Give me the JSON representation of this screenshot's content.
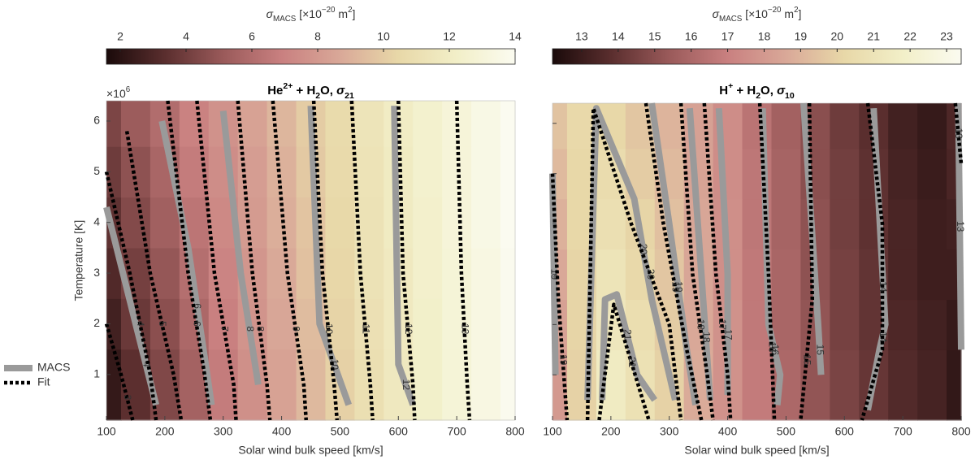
{
  "chart_data": [
    {
      "type": "contour",
      "title": [
        {
          "text": "He"
        },
        {
          "text": "2+",
          "pos": "sup"
        },
        {
          "text": " + H"
        },
        {
          "text": "2",
          "pos": "sub"
        },
        {
          "text": "O, "
        },
        {
          "text": "σ",
          "italic": true
        },
        {
          "text": "21",
          "pos": "sub"
        }
      ],
      "colorbar_label": [
        {
          "text": "σ",
          "italic": true
        },
        {
          "text": "MACS",
          "pos": "sub"
        },
        {
          "text": " [×10"
        },
        {
          "text": "−20",
          "pos": "sup"
        },
        {
          "text": " m"
        },
        {
          "text": "2",
          "pos": "sup"
        },
        {
          "text": "]"
        }
      ],
      "clim": [
        1.58,
        14
      ],
      "cticks": [
        2,
        4,
        6,
        8,
        10,
        12,
        14
      ],
      "colormap": [
        "#1a0a0a",
        "#5a2e2e",
        "#9a5a5a",
        "#c98080",
        "#d9a898",
        "#e8d8a8",
        "#f2efc8",
        "#fbfbf0"
      ],
      "x_label": "Solar wind bulk speed [km/s]",
      "y_label": "Temperature [K]",
      "y_exponent": [
        {
          "text": "×10"
        },
        {
          "text": "6",
          "pos": "sup"
        }
      ],
      "xlim": [
        100,
        800
      ],
      "xticks": [
        100,
        200,
        300,
        400,
        500,
        600,
        700,
        800
      ],
      "ylim": [
        100000,
        6400000
      ],
      "yticks": [
        {
          "value": 1000000,
          "label": "1"
        },
        {
          "value": 2000000,
          "label": "2"
        },
        {
          "value": 3000000,
          "label": "3"
        },
        {
          "value": 4000000,
          "label": "4"
        },
        {
          "value": 5000000,
          "label": "5"
        },
        {
          "value": 6000000,
          "label": "6"
        }
      ],
      "legend": [
        {
          "name": "MACS",
          "style": "solid"
        },
        {
          "name": "Fit",
          "style": "dotted"
        }
      ],
      "styles": {
        "solid": {
          "color": "#9a9a9a",
          "width": 8
        },
        "dotted": {
          "color": "#000000",
          "width": 4.5
        }
      },
      "field": {
        "x": [
          100,
          150,
          200,
          250,
          300,
          350,
          400,
          450,
          500,
          550,
          600,
          650,
          700,
          750,
          800
        ],
        "y": [
          1000000,
          2000000,
          3000000,
          4000000,
          5000000,
          6000000
        ],
        "z": [
          [
            2.3,
            3.4,
            4.4,
            5.5,
            6.7,
            7.6,
            8.4,
            9.3,
            10.2,
            11.0,
            11.7,
            12.3,
            12.9,
            13.4,
            13.9
          ],
          [
            2.7,
            3.8,
            4.7,
            5.8,
            6.9,
            7.8,
            8.6,
            9.4,
            10.3,
            11.1,
            11.8,
            12.3,
            12.9,
            13.4,
            13.9
          ],
          [
            3.1,
            4.1,
            5.0,
            6.1,
            7.1,
            7.9,
            8.7,
            9.6,
            10.4,
            11.2,
            11.8,
            12.4,
            12.9,
            13.4,
            13.9
          ],
          [
            3.5,
            4.5,
            5.4,
            6.4,
            7.3,
            8.1,
            8.9,
            9.7,
            10.5,
            11.2,
            11.9,
            12.4,
            13.0,
            13.5,
            14.0
          ],
          [
            3.9,
            4.8,
            5.7,
            6.7,
            7.5,
            8.2,
            9.0,
            9.9,
            10.6,
            11.3,
            11.9,
            12.5,
            13.0,
            13.5,
            14.0
          ],
          [
            4.3,
            5.2,
            6.0,
            7.0,
            7.7,
            8.4,
            9.2,
            10.0,
            10.7,
            11.4,
            12.0,
            12.5,
            13.0,
            13.5,
            14.0
          ]
        ]
      },
      "contours": [
        {
          "label": "4",
          "style": "solid",
          "x": [
            100,
            150,
            185
          ],
          "y": [
            4300000,
            2000000,
            400000
          ]
        },
        {
          "label": "6",
          "style": "solid",
          "x": [
            195,
            240,
            270,
            280
          ],
          "y": [
            6000000,
            3500000,
            1200000,
            400000
          ]
        },
        {
          "label": "8",
          "style": "solid",
          "x": [
            300,
            330,
            360
          ],
          "y": [
            6200000,
            3000000,
            800000
          ]
        },
        {
          "label": "10",
          "style": "solid",
          "x": [
            450,
            465,
            515
          ],
          "y": [
            6300000,
            2000000,
            400000
          ]
        },
        {
          "label": "12",
          "style": "solid",
          "x": [
            593,
            600,
            625
          ],
          "y": [
            6300000,
            1200000,
            400000
          ]
        },
        {
          "label": "3",
          "style": "dotted",
          "x": [
            100,
            125,
            145
          ],
          "y": [
            2000000,
            1000000,
            100000
          ]
        },
        {
          "label": "4",
          "style": "dotted",
          "x": [
            100,
            140,
            175,
            185
          ],
          "y": [
            5000000,
            3000000,
            1000000,
            100000
          ]
        },
        {
          "label": "5",
          "style": "dotted",
          "x": [
            135,
            175,
            215,
            228
          ],
          "y": [
            5800000,
            3000000,
            1000000,
            100000
          ]
        },
        {
          "label": "6",
          "style": "dotted",
          "x": [
            205,
            240,
            268,
            278
          ],
          "y": [
            6400000,
            3000000,
            1000000,
            100000
          ]
        },
        {
          "label": "7",
          "style": "dotted",
          "x": [
            255,
            285,
            318,
            322
          ],
          "y": [
            6400000,
            3000000,
            800000,
            100000
          ]
        },
        {
          "label": "8",
          "style": "dotted",
          "x": [
            325,
            350,
            375,
            380
          ],
          "y": [
            6400000,
            3000000,
            800000,
            100000
          ]
        },
        {
          "label": "9",
          "style": "dotted",
          "x": [
            385,
            410,
            438,
            442
          ],
          "y": [
            6400000,
            3000000,
            800000,
            100000
          ]
        },
        {
          "label": "10",
          "style": "dotted",
          "x": [
            455,
            470,
            490,
            495
          ],
          "y": [
            6400000,
            3000000,
            800000,
            100000
          ]
        },
        {
          "label": "11",
          "style": "dotted",
          "x": [
            520,
            535,
            552,
            556
          ],
          "y": [
            6400000,
            3000000,
            800000,
            100000
          ]
        },
        {
          "label": "12",
          "style": "dotted",
          "x": [
            600,
            608,
            625,
            628
          ],
          "y": [
            6400000,
            3000000,
            800000,
            100000
          ]
        },
        {
          "label": "13",
          "style": "dotted",
          "x": [
            700,
            708,
            718,
            722
          ],
          "y": [
            6400000,
            3000000,
            800000,
            100000
          ]
        }
      ]
    },
    {
      "type": "contour",
      "title": [
        {
          "text": "H"
        },
        {
          "text": "+",
          "pos": "sup"
        },
        {
          "text": " + H"
        },
        {
          "text": "2",
          "pos": "sub"
        },
        {
          "text": "O, "
        },
        {
          "text": "σ",
          "italic": true
        },
        {
          "text": "10",
          "pos": "sub"
        }
      ],
      "colorbar_label": [
        {
          "text": "σ",
          "italic": true
        },
        {
          "text": "MACS",
          "pos": "sub"
        },
        {
          "text": " [×10"
        },
        {
          "text": "−20",
          "pos": "sup"
        },
        {
          "text": " m"
        },
        {
          "text": "2",
          "pos": "sup"
        },
        {
          "text": "]"
        }
      ],
      "clim": [
        12.2,
        23.4
      ],
      "cticks": [
        13,
        14,
        15,
        16,
        17,
        18,
        19,
        20,
        21,
        22,
        23
      ],
      "colormap": [
        "#1a0a0a",
        "#5a2e2e",
        "#9a5a5a",
        "#c98080",
        "#d9a898",
        "#e8d8a8",
        "#f2efc8",
        "#fbfbf0"
      ],
      "x_label": "Solar wind bulk speed [km/s]",
      "xlim": [
        100,
        800
      ],
      "xticks": [
        100,
        200,
        300,
        400,
        500,
        600,
        700,
        800
      ],
      "ylim": [
        100000,
        6400000
      ],
      "yticks": [
        1000000,
        2000000,
        3000000,
        4000000,
        5000000,
        6000000
      ],
      "ytick_labels": false,
      "styles": {
        "solid": {
          "color": "#9a9a9a",
          "width": 8
        },
        "dotted": {
          "color": "#000000",
          "width": 4.5
        }
      },
      "field": {
        "x": [
          100,
          150,
          200,
          250,
          300,
          350,
          400,
          450,
          500,
          550,
          600,
          650,
          700,
          750,
          800
        ],
        "y": [
          1000000,
          2000000,
          3000000,
          4000000,
          5000000,
          6000000
        ],
        "z": [
          [
            18.0,
            20.0,
            21.5,
            20.8,
            20.0,
            18.7,
            17.7,
            16.8,
            16.0,
            15.2,
            14.6,
            14.1,
            13.6,
            13.3,
            12.8
          ],
          [
            18.3,
            20.1,
            21.2,
            20.6,
            19.8,
            18.6,
            17.7,
            16.7,
            15.9,
            15.2,
            14.5,
            14.0,
            13.5,
            13.2,
            12.9
          ],
          [
            18.6,
            20.1,
            21.0,
            20.3,
            19.6,
            18.5,
            17.6,
            16.7,
            15.9,
            15.1,
            14.5,
            14.0,
            13.4,
            13.1,
            13.1
          ],
          [
            18.9,
            20.2,
            20.7,
            20.1,
            19.4,
            18.5,
            17.6,
            16.6,
            15.8,
            15.1,
            14.4,
            13.9,
            13.4,
            13.1,
            13.2
          ],
          [
            19.2,
            20.2,
            20.5,
            19.8,
            19.2,
            18.4,
            17.5,
            16.6,
            15.8,
            15.0,
            14.4,
            13.9,
            13.3,
            13.0,
            13.4
          ],
          [
            19.5,
            20.3,
            20.2,
            19.6,
            19.0,
            18.3,
            17.5,
            16.5,
            15.7,
            15.0,
            14.3,
            13.8,
            13.2,
            12.9,
            13.5
          ]
        ]
      },
      "contours": [
        {
          "label": "19",
          "style": "solid",
          "x": [
            100,
            105
          ],
          "y": [
            5000000,
            1000000
          ]
        },
        {
          "label": "20",
          "style": "solid",
          "x": [
            160,
            175,
            240,
            270,
            310
          ],
          "y": [
            500000,
            6300000,
            4500000,
            2500000,
            500000
          ]
        },
        {
          "label": "21",
          "style": "solid",
          "x": [
            185,
            190,
            210,
            245,
            275
          ],
          "y": [
            500000,
            2500000,
            2600000,
            1000000,
            500000
          ]
        },
        {
          "label": "19",
          "style": "solid",
          "x": [
            270,
            300,
            330,
            345
          ],
          "y": [
            6400000,
            4000000,
            1500000,
            400000
          ]
        },
        {
          "label": "18",
          "style": "solid",
          "x": [
            335,
            355,
            370
          ],
          "y": [
            6300000,
            3000000,
            500000
          ]
        },
        {
          "label": "17",
          "style": "solid",
          "x": [
            385,
            400,
            400
          ],
          "y": [
            6300000,
            3000000,
            600000
          ]
        },
        {
          "label": "16",
          "style": "solid",
          "x": [
            460,
            470,
            490,
            485
          ],
          "y": [
            6300000,
            2000000,
            1000000,
            400000
          ]
        },
        {
          "label": "15",
          "style": "solid",
          "x": [
            530,
            555,
            560
          ],
          "y": [
            6400000,
            2000000,
            1000000
          ]
        },
        {
          "label": "14",
          "style": "solid",
          "x": [
            650,
            670,
            660,
            640
          ],
          "y": [
            6300000,
            2000000,
            1500000,
            300000
          ]
        },
        {
          "label": "13",
          "style": "solid",
          "x": [
            795,
            800
          ],
          "y": [
            6400000,
            1500000
          ]
        },
        {
          "label": "19",
          "style": "dotted",
          "x": [
            100,
            110,
            125
          ],
          "y": [
            5000000,
            2500000,
            100000
          ]
        },
        {
          "label": "20",
          "style": "dotted",
          "x": [
            160,
            170,
            235,
            300,
            320
          ],
          "y": [
            100000,
            6300000,
            4000000,
            2000000,
            100000
          ]
        },
        {
          "label": "21",
          "style": "dotted",
          "x": [
            180,
            205,
            265
          ],
          "y": [
            100000,
            2400000,
            100000
          ]
        },
        {
          "label": "19",
          "style": "dotted",
          "x": [
            260,
            290,
            330,
            355
          ],
          "y": [
            6400000,
            4000000,
            1500000,
            100000
          ]
        },
        {
          "label": "18",
          "style": "dotted",
          "x": [
            320,
            340,
            365,
            375
          ],
          "y": [
            6400000,
            3000000,
            1000000,
            100000
          ]
        },
        {
          "label": "17",
          "style": "dotted",
          "x": [
            360,
            380,
            400,
            405
          ],
          "y": [
            6400000,
            3000000,
            1000000,
            100000
          ]
        },
        {
          "label": "16",
          "style": "dotted",
          "x": [
            455,
            470,
            480
          ],
          "y": [
            6400000,
            3000000,
            100000
          ]
        },
        {
          "label": "15",
          "style": "dotted",
          "x": [
            540,
            545,
            525
          ],
          "y": [
            6400000,
            2500000,
            100000
          ]
        },
        {
          "label": "14",
          "style": "dotted",
          "x": [
            640,
            665,
            665,
            630
          ],
          "y": [
            6400000,
            4000000,
            1500000,
            100000
          ]
        },
        {
          "label": "13",
          "style": "dotted",
          "x": [
            790,
            800
          ],
          "y": [
            6400000,
            5200000
          ]
        }
      ]
    }
  ]
}
